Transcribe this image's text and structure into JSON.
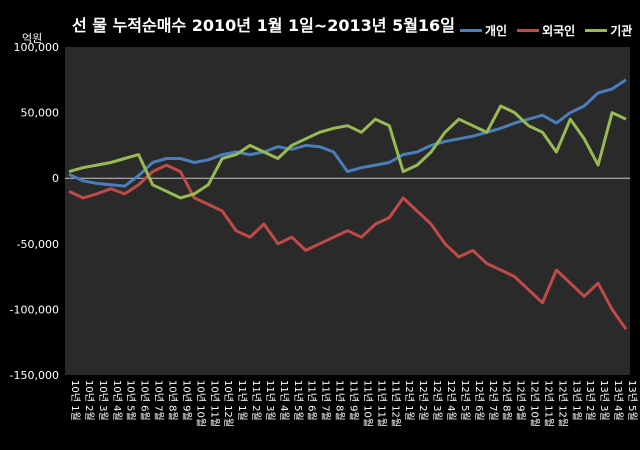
{
  "chart_data": {
    "type": "line",
    "title": "선 물 누적순매수 2010년 1월 1일~2013년 5월16일",
    "ylabel": "억원",
    "xlabel": "",
    "ylim": [
      -150000,
      100000
    ],
    "y_ticks": [
      "100,000",
      "50,000",
      "0",
      "-50,000",
      "-100,000",
      "-150,000"
    ],
    "grid": false,
    "legend_position": "top-right",
    "categories": [
      "10년 1월",
      "10년 2월",
      "10년 3월",
      "10년 4월",
      "10년 5월",
      "10년 6월",
      "10년 7월",
      "10년 8월",
      "10년 9월",
      "10년 10월",
      "10년 11월",
      "10년 12월",
      "11년 1월",
      "11년 2월",
      "11년 3월",
      "11년 4월",
      "11년 5월",
      "11년 6월",
      "11년 7월",
      "11년 8월",
      "11년 9월",
      "11년 10월",
      "11년 11월",
      "11년 12월",
      "12년 1월",
      "12년 2월",
      "12년 3월",
      "12년 4월",
      "12년 5월",
      "12년 6월",
      "12년 7월",
      "12년 8월",
      "12년 9월",
      "12년 10월",
      "12년 11월",
      "12년 12월",
      "13년 1월",
      "13년 2월",
      "13년 3월",
      "13년 4월",
      "13년 5월"
    ],
    "series": [
      {
        "name": "개인",
        "color": "#4A7EBB",
        "values": [
          3000,
          -2000,
          -4000,
          -5000,
          -6000,
          2000,
          12000,
          15000,
          15000,
          12000,
          14000,
          18000,
          20000,
          18000,
          20000,
          24000,
          22000,
          25000,
          24000,
          20000,
          5000,
          8000,
          10000,
          12000,
          18000,
          20000,
          25000,
          28000,
          30000,
          32000,
          35000,
          38000,
          42000,
          45000,
          48000,
          42000,
          50000,
          55000,
          65000,
          68000,
          75000
        ]
      },
      {
        "name": "외국인",
        "color": "#BE4B48",
        "values": [
          -10000,
          -15000,
          -12000,
          -8000,
          -12000,
          -5000,
          5000,
          10000,
          5000,
          -15000,
          -20000,
          -25000,
          -40000,
          -45000,
          -35000,
          -50000,
          -45000,
          -55000,
          -50000,
          -45000,
          -40000,
          -45000,
          -35000,
          -30000,
          -15000,
          -25000,
          -35000,
          -50000,
          -60000,
          -55000,
          -65000,
          -70000,
          -75000,
          -85000,
          -95000,
          -70000,
          -80000,
          -90000,
          -80000,
          -100000,
          -115000
        ]
      },
      {
        "name": "기관",
        "color": "#98B954",
        "values": [
          5000,
          8000,
          10000,
          12000,
          15000,
          18000,
          -5000,
          -10000,
          -15000,
          -12000,
          -5000,
          15000,
          18000,
          25000,
          20000,
          15000,
          25000,
          30000,
          35000,
          38000,
          40000,
          35000,
          45000,
          40000,
          5000,
          10000,
          20000,
          35000,
          45000,
          40000,
          35000,
          55000,
          50000,
          40000,
          35000,
          20000,
          45000,
          30000,
          10000,
          50000,
          45000
        ]
      }
    ]
  }
}
